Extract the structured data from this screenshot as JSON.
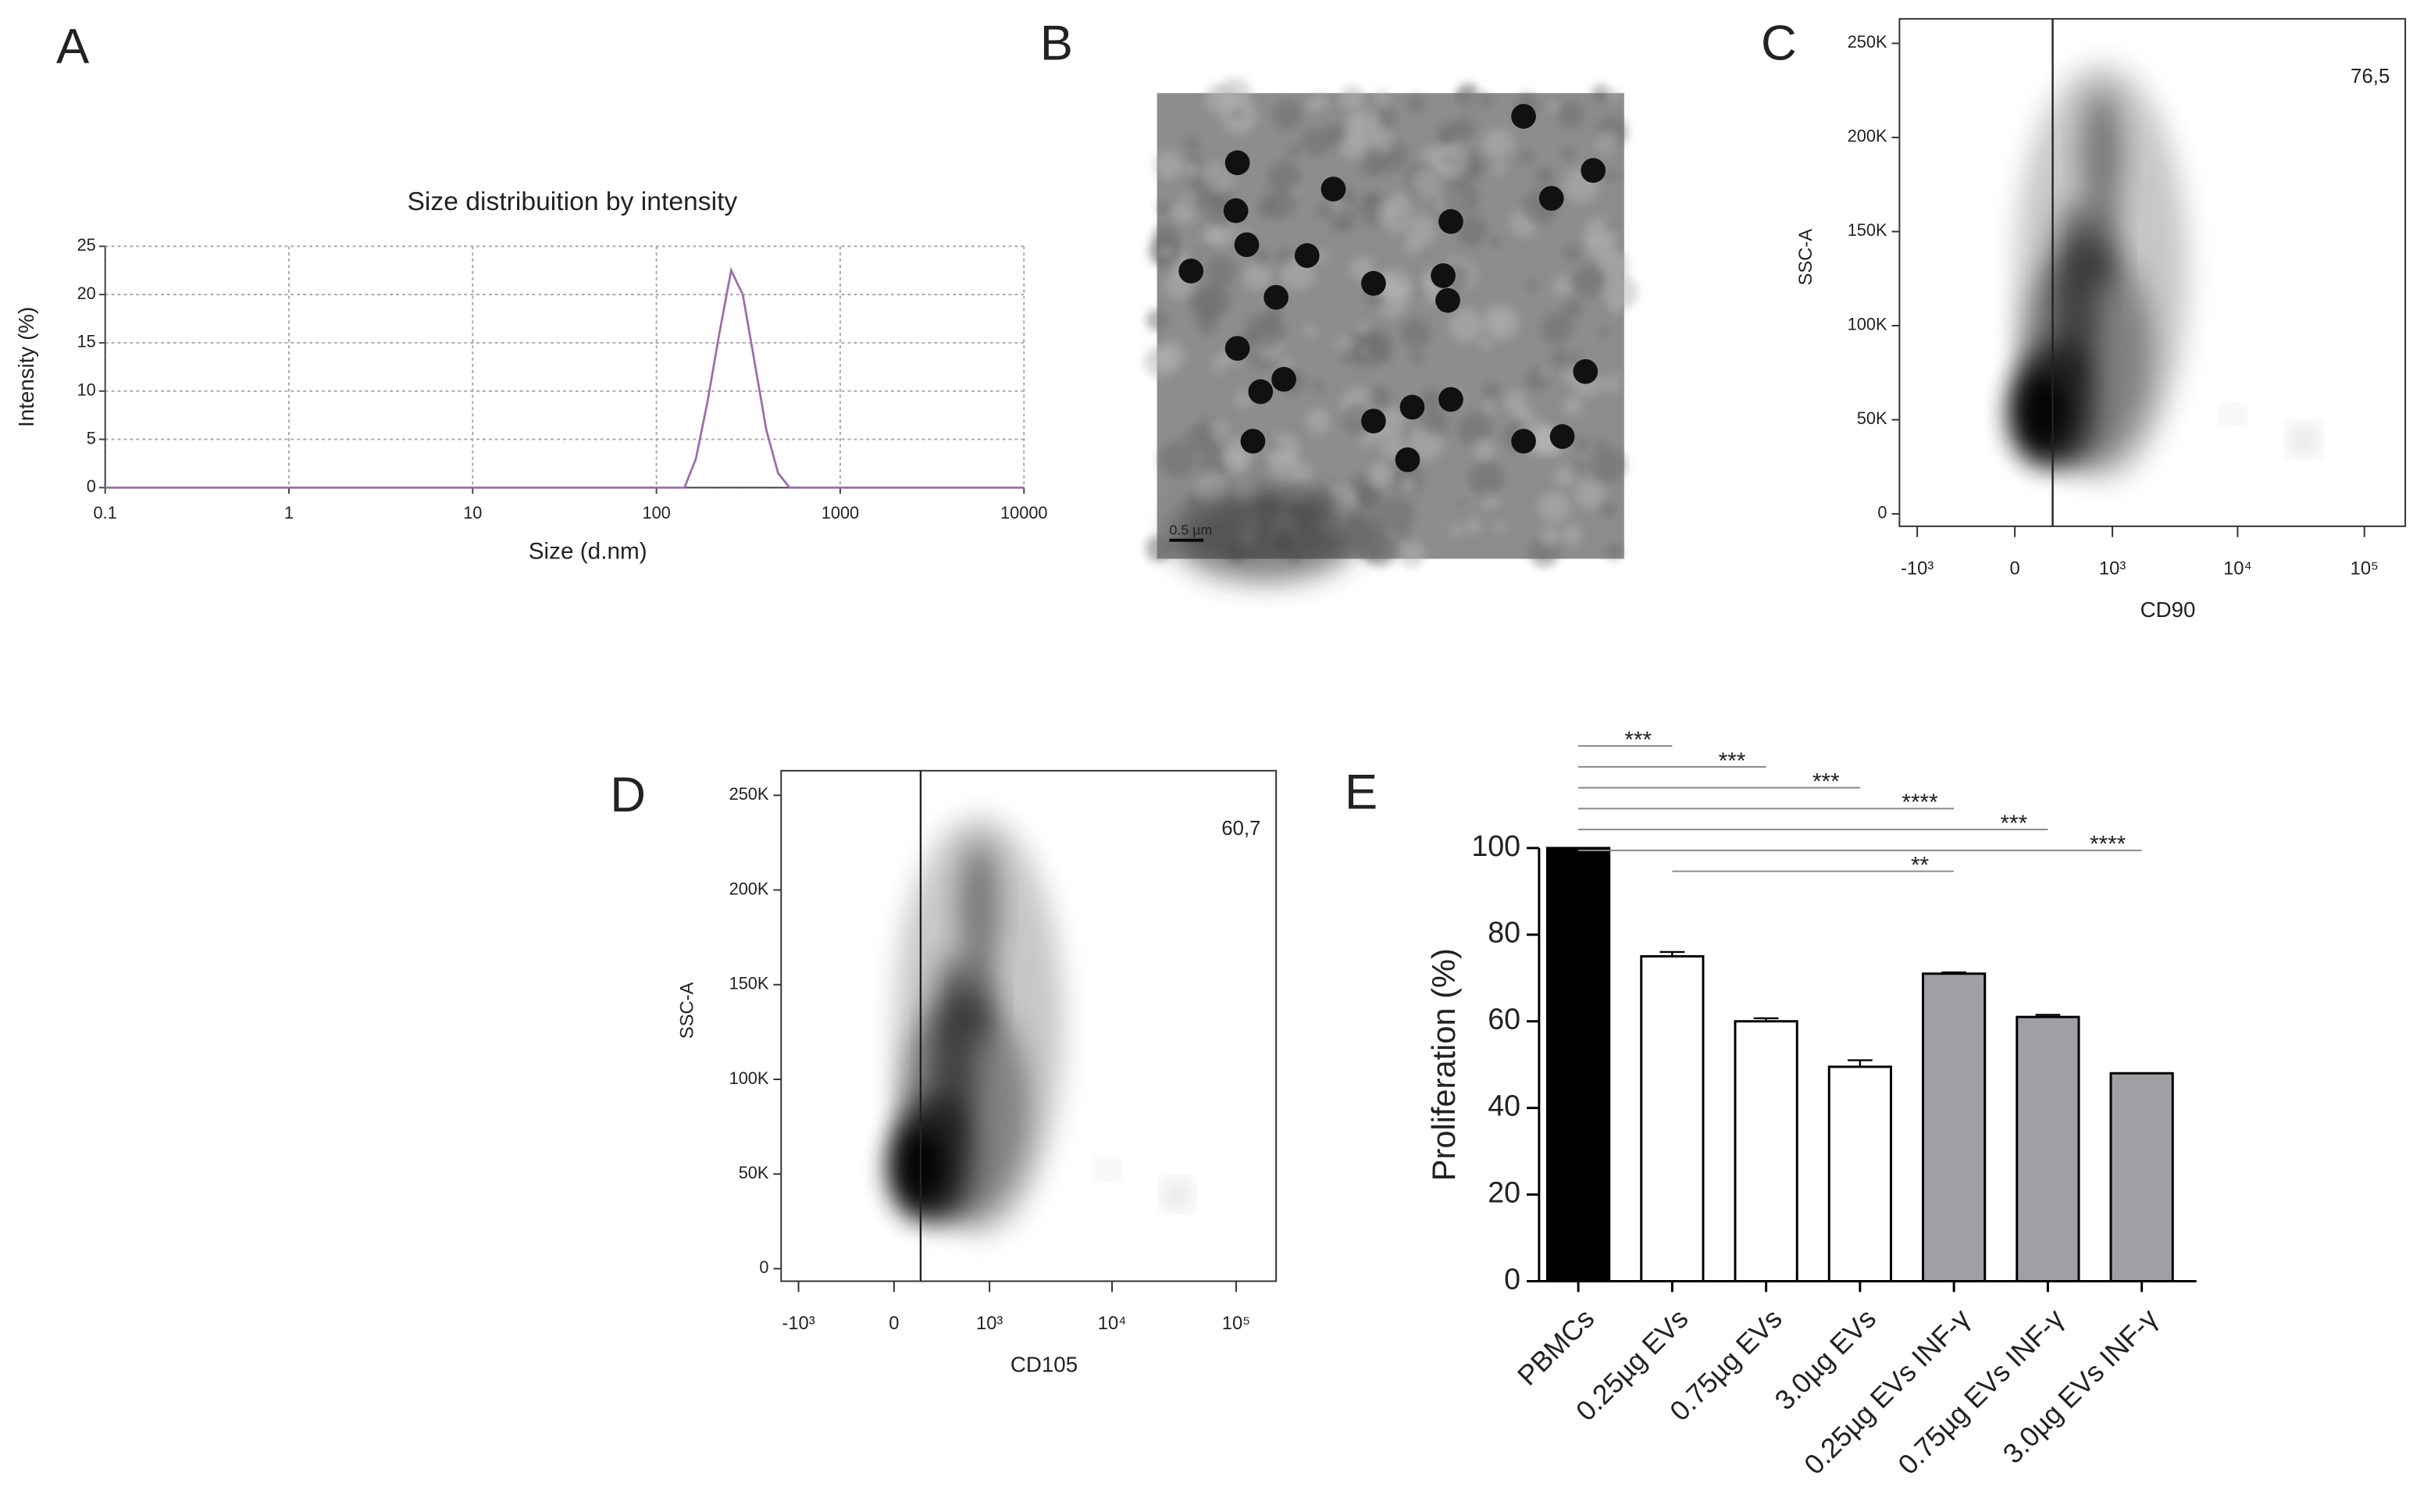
{
  "chart_data": [
    {
      "type": "line",
      "panel": "A",
      "title": "Size distribuition by intensity",
      "xlabel": "Size (d.nm)",
      "ylabel": "Intensity (%)",
      "xscale": "log",
      "xlim": [
        0.1,
        10000
      ],
      "xticks": [
        0.1,
        1,
        10,
        100,
        1000,
        10000
      ],
      "ylim": [
        0,
        25
      ],
      "yticks": [
        0,
        5,
        10,
        15,
        20,
        25
      ],
      "grid": true,
      "x": [
        0.1,
        100,
        142,
        164,
        190,
        220,
        255,
        295,
        342,
        396,
        459,
        531,
        1000,
        10000
      ],
      "series": [
        {
          "color": "#9b6fa8",
          "values": [
            0,
            0,
            0,
            3,
            9,
            16,
            22.5,
            20,
            13,
            6,
            1.5,
            0,
            0,
            0
          ]
        }
      ]
    },
    {
      "type": "image",
      "panel": "B",
      "scale_bar": "0.5 µm"
    },
    {
      "type": "density",
      "panel": "C",
      "xlabel": "CD90",
      "ylabel": "SSC-A",
      "xscale": "biexponential",
      "xlim": [
        -1400,
        210000
      ],
      "xticks": [
        {
          "value": -1000,
          "label": "-10³"
        },
        0,
        {
          "value": 1000,
          "label": "10³"
        },
        {
          "value": 10000,
          "label": "10⁴"
        },
        {
          "value": 100000,
          "label": "10⁵"
        }
      ],
      "ylim": [
        -6600,
        263000
      ],
      "yticks": [
        0,
        {
          "value": 50000,
          "label": "50K"
        },
        {
          "value": 100000,
          "label": "100K"
        },
        {
          "value": 150000,
          "label": "150K"
        },
        {
          "value": 200000,
          "label": "200K"
        },
        {
          "value": 250000,
          "label": "250K"
        }
      ],
      "gate_x": 260,
      "gate": {
        "value": 76.5,
        "label": "76,5"
      }
    },
    {
      "type": "density",
      "panel": "D",
      "xlabel": "CD105",
      "ylabel": "SSC-A",
      "xscale": "biexponential",
      "xlim": [
        -1400,
        210000
      ],
      "xticks": [
        {
          "value": -1000,
          "label": "-10³"
        },
        0,
        {
          "value": 1000,
          "label": "10³"
        },
        {
          "value": 10000,
          "label": "10⁴"
        },
        {
          "value": 100000,
          "label": "10⁵"
        }
      ],
      "ylim": [
        -6600,
        263000
      ],
      "yticks": [
        0,
        {
          "value": 50000,
          "label": "50K"
        },
        {
          "value": 100000,
          "label": "100K"
        },
        {
          "value": 150000,
          "label": "150K"
        },
        {
          "value": 200000,
          "label": "200K"
        },
        {
          "value": 250000,
          "label": "250K"
        }
      ],
      "gate_x": 180,
      "gate": {
        "value": 60.7,
        "label": "60,7"
      }
    },
    {
      "type": "bar",
      "panel": "E",
      "ylabel": "Proliferation (%)",
      "categories": [
        "PBMCs",
        "0.25µg EVs",
        "0.75µg EVs",
        "3.0µg EVs",
        "0.25µg EVs INF-γ",
        "0.75µg EVs INF-γ",
        "3.0µg EVs INF-γ"
      ],
      "values": [
        100,
        75,
        60,
        49.5,
        71,
        61,
        48
      ],
      "errors": [
        0,
        1,
        0.7,
        1.5,
        0.3,
        0.5,
        0
      ],
      "colors": [
        "#000000",
        "#ffffff",
        "#ffffff",
        "#ffffff",
        "#a0a0a4",
        "#a0a0a4",
        "#a0a0a4"
      ],
      "ylim": [
        0,
        100
      ],
      "yticks": [
        0,
        20,
        40,
        60,
        80,
        100
      ],
      "significance": [
        {
          "from": 0,
          "to": 1,
          "label": "***"
        },
        {
          "from": 0,
          "to": 2,
          "label": "***"
        },
        {
          "from": 0,
          "to": 3,
          "label": "***"
        },
        {
          "from": 0,
          "to": 4,
          "label": "****"
        },
        {
          "from": 0,
          "to": 5,
          "label": "***"
        },
        {
          "from": 0,
          "to": 6,
          "label": "****"
        },
        {
          "from": 1,
          "to": 4,
          "label": "**"
        }
      ]
    }
  ]
}
